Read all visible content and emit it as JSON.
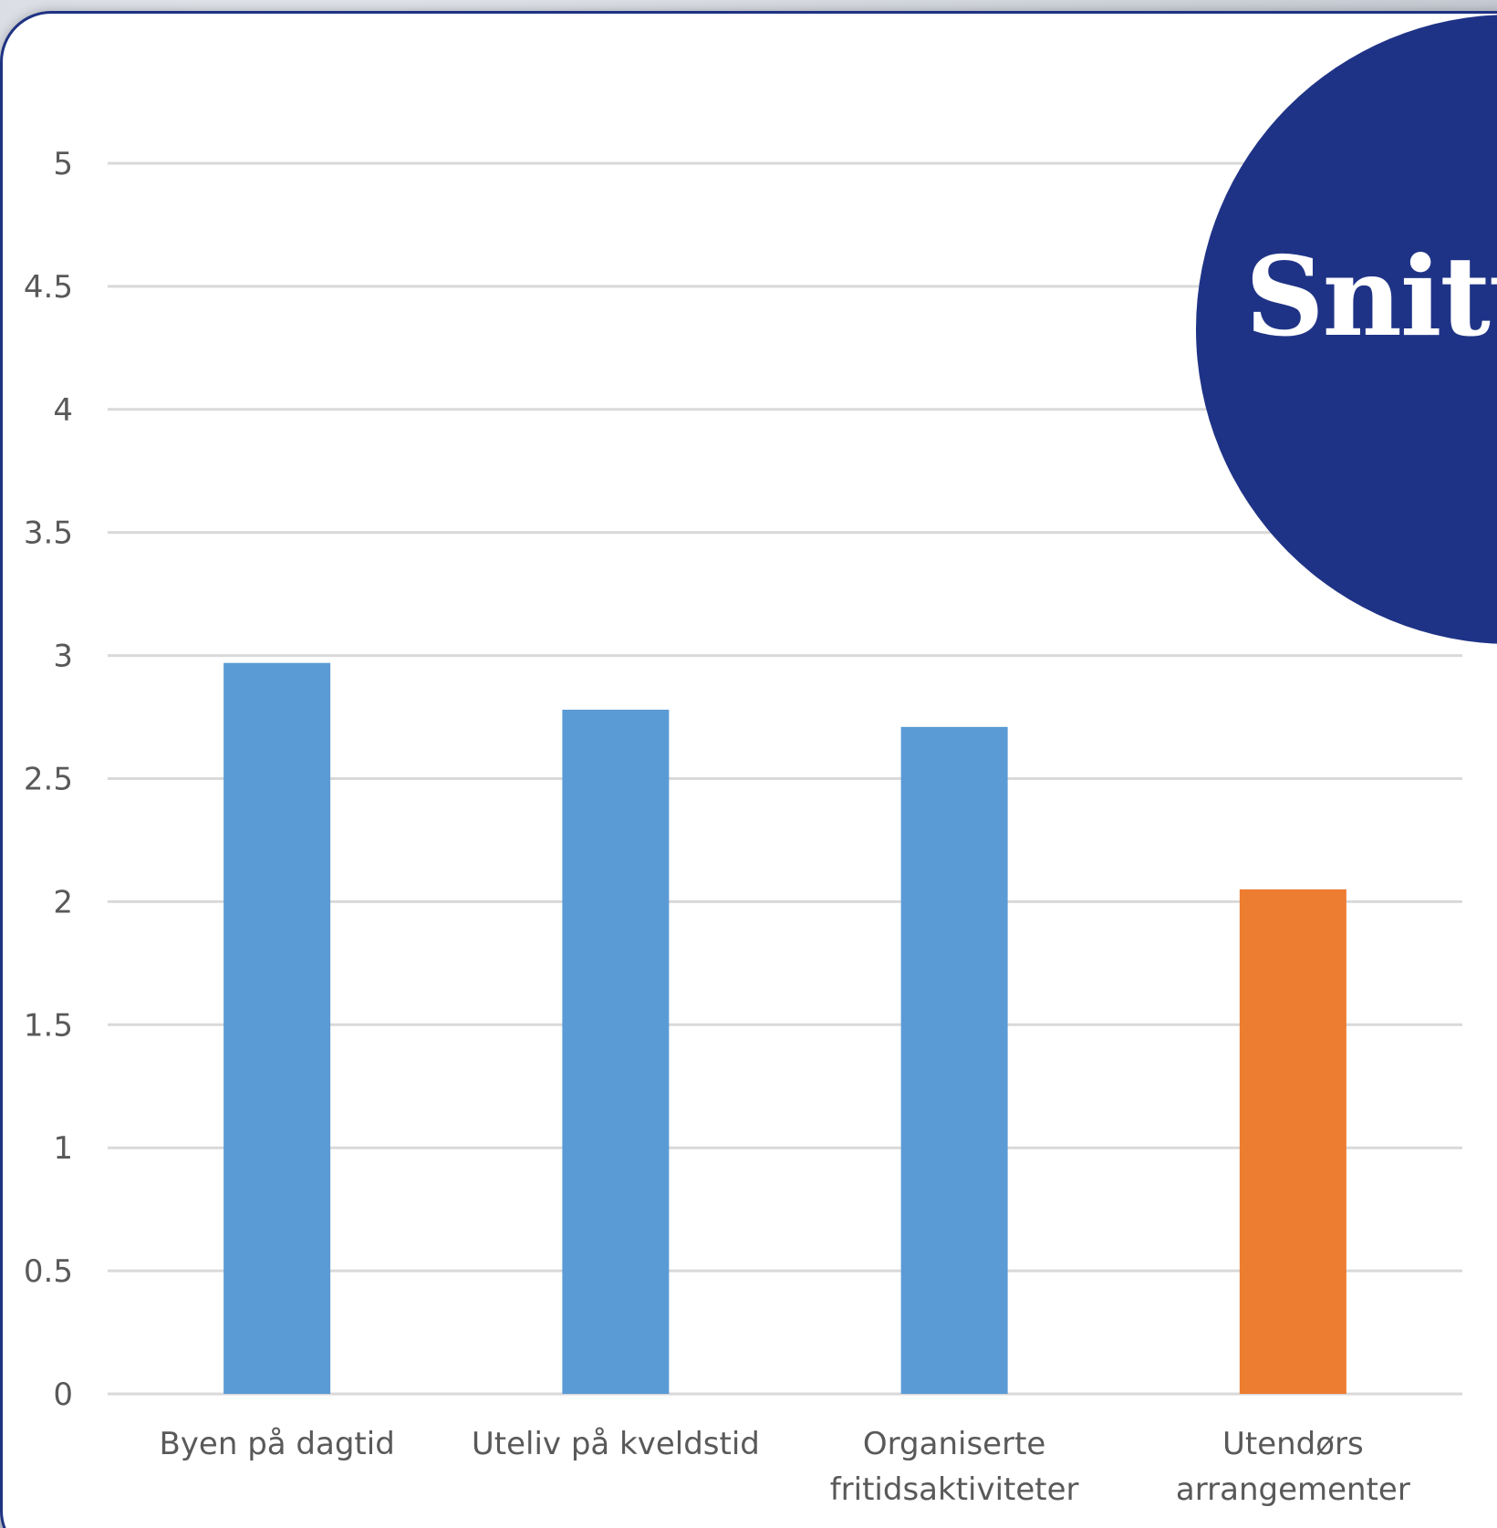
{
  "badge": {
    "text": "Snitt",
    "color": "#1f3386"
  },
  "chart_data": {
    "type": "bar",
    "title": "",
    "xlabel": "",
    "ylabel": "",
    "ylim": [
      0,
      5
    ],
    "yticks": [
      "0",
      "0.5",
      "1",
      "1.5",
      "2",
      "2.5",
      "3",
      "3.5",
      "4",
      "4.5",
      "5"
    ],
    "grid": true,
    "categories": [
      [
        "Byen på dagtid"
      ],
      [
        "Uteliv på kveldstid"
      ],
      [
        "Organiserte",
        "fritidsaktiviteter"
      ],
      [
        "Utendørs",
        "arrangementer"
      ]
    ],
    "values": [
      2.97,
      2.78,
      2.71,
      2.05
    ],
    "colors": [
      "#5b9bd5",
      "#5b9bd5",
      "#5b9bd5",
      "#ed7d31"
    ]
  }
}
